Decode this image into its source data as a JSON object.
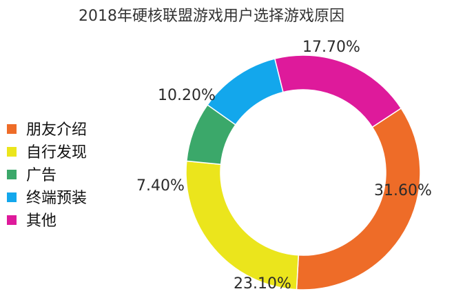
{
  "chart_data": {
    "type": "pie",
    "title": "2018年硬核联盟游戏用户选择游戏原因",
    "donut": true,
    "legend_position": "left",
    "labels": [
      "朋友介绍",
      "自行发现",
      "广告",
      "终端预装",
      "其他"
    ],
    "values": [
      31.6,
      23.1,
      7.4,
      10.2,
      17.7
    ],
    "value_labels": [
      "31.60%",
      "23.10%",
      "7.40%",
      "10.20%",
      "17.70%"
    ],
    "colors": [
      "#EE6C28",
      "#EBE51C",
      "#3BA86A",
      "#13A7EC",
      "#DE1A9B"
    ],
    "start_angle_deg": 56.8,
    "direction": "clockwise"
  }
}
